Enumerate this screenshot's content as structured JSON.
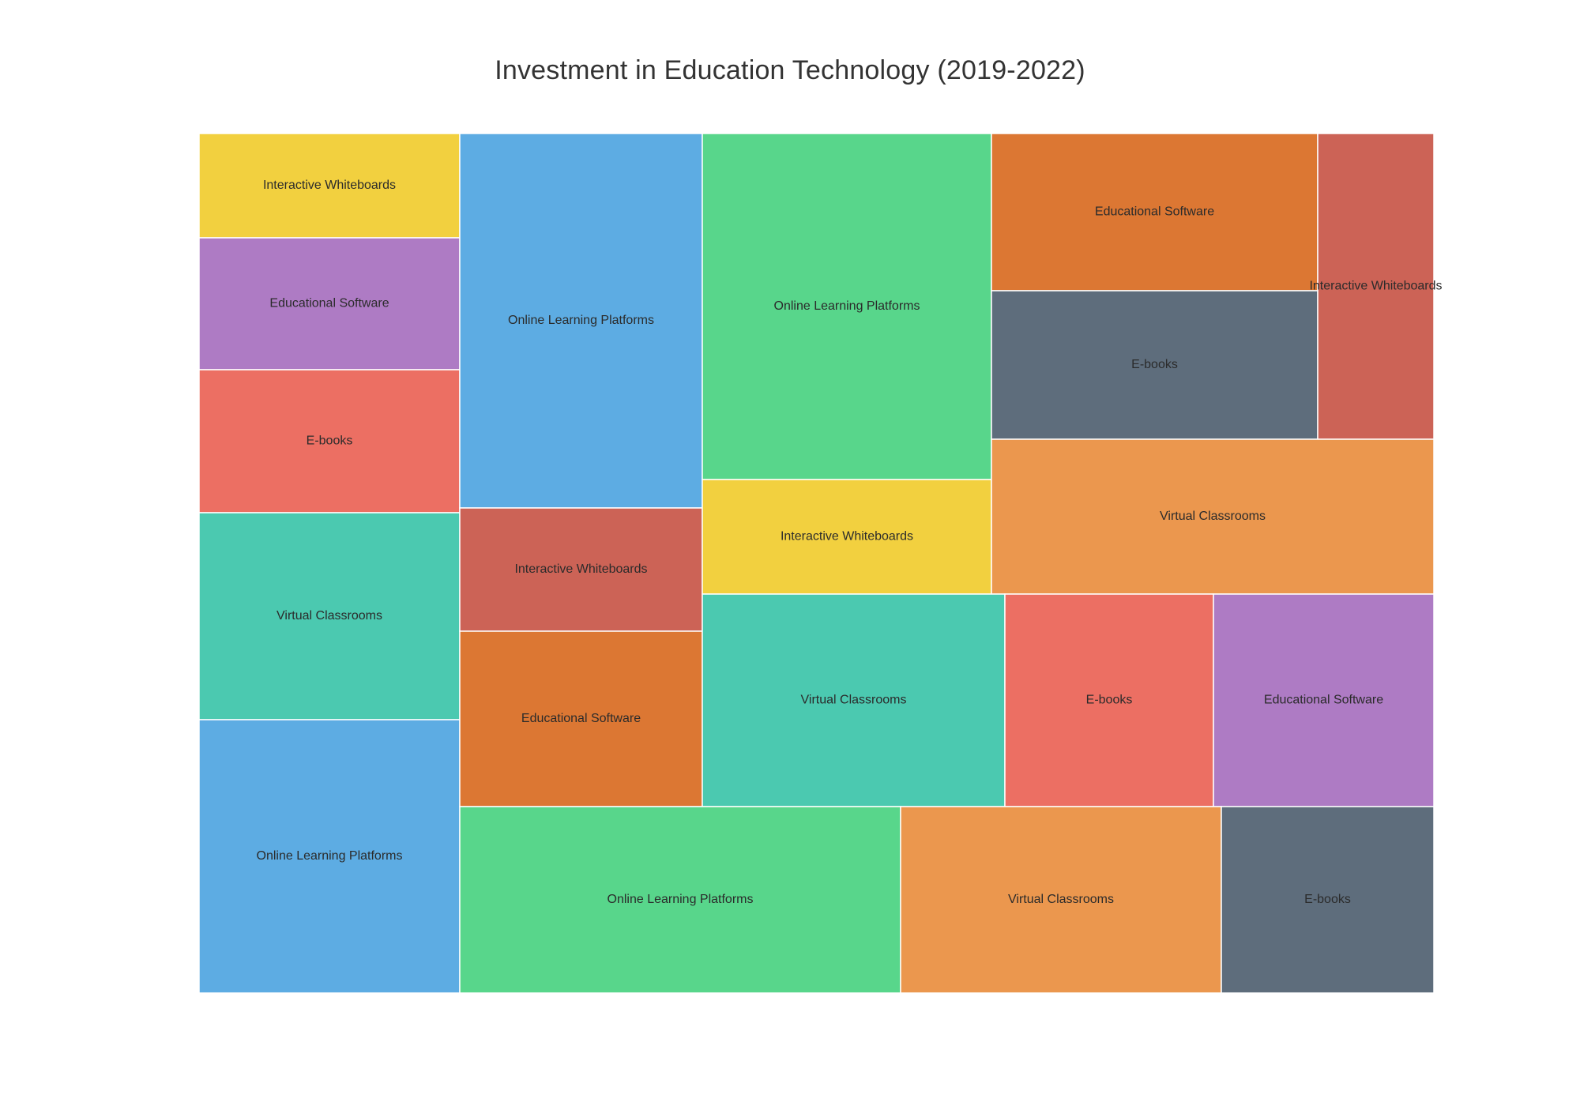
{
  "chart_data": {
    "type": "treemap",
    "title": "Investment in Education Technology (2019-2022)",
    "tiles": [
      {
        "label": "Interactive Whiteboards",
        "color": "#f2d03f"
      },
      {
        "label": "Educational Software",
        "color": "#ae7bc4"
      },
      {
        "label": "E-books",
        "color": "#ec6f63"
      },
      {
        "label": "Virtual Classrooms",
        "color": "#4bc9b0"
      },
      {
        "label": "Online Learning Platforms",
        "color": "#5dace3"
      },
      {
        "label": "Online Learning Platforms",
        "color": "#5dace3"
      },
      {
        "label": "Interactive Whiteboards",
        "color": "#cc6356"
      },
      {
        "label": "Educational Software",
        "color": "#dc7733"
      },
      {
        "label": "Online Learning Platforms",
        "color": "#58d68b"
      },
      {
        "label": "Interactive Whiteboards",
        "color": "#f2d03f"
      },
      {
        "label": "Educational Software",
        "color": "#dc7733"
      },
      {
        "label": "E-books",
        "color": "#5e6d7c"
      },
      {
        "label": "Interactive Whiteboards",
        "color": "#cc6356"
      },
      {
        "label": "Virtual Classrooms",
        "color": "#eb974e"
      },
      {
        "label": "Virtual Classrooms",
        "color": "#4bc9b0"
      },
      {
        "label": "E-books",
        "color": "#ec6f63"
      },
      {
        "label": "Educational Software",
        "color": "#ae7bc4"
      },
      {
        "label": "Online Learning Platforms",
        "color": "#58d68b"
      },
      {
        "label": "Virtual Classrooms",
        "color": "#eb974e"
      },
      {
        "label": "E-books",
        "color": "#5e6d7c"
      }
    ]
  }
}
